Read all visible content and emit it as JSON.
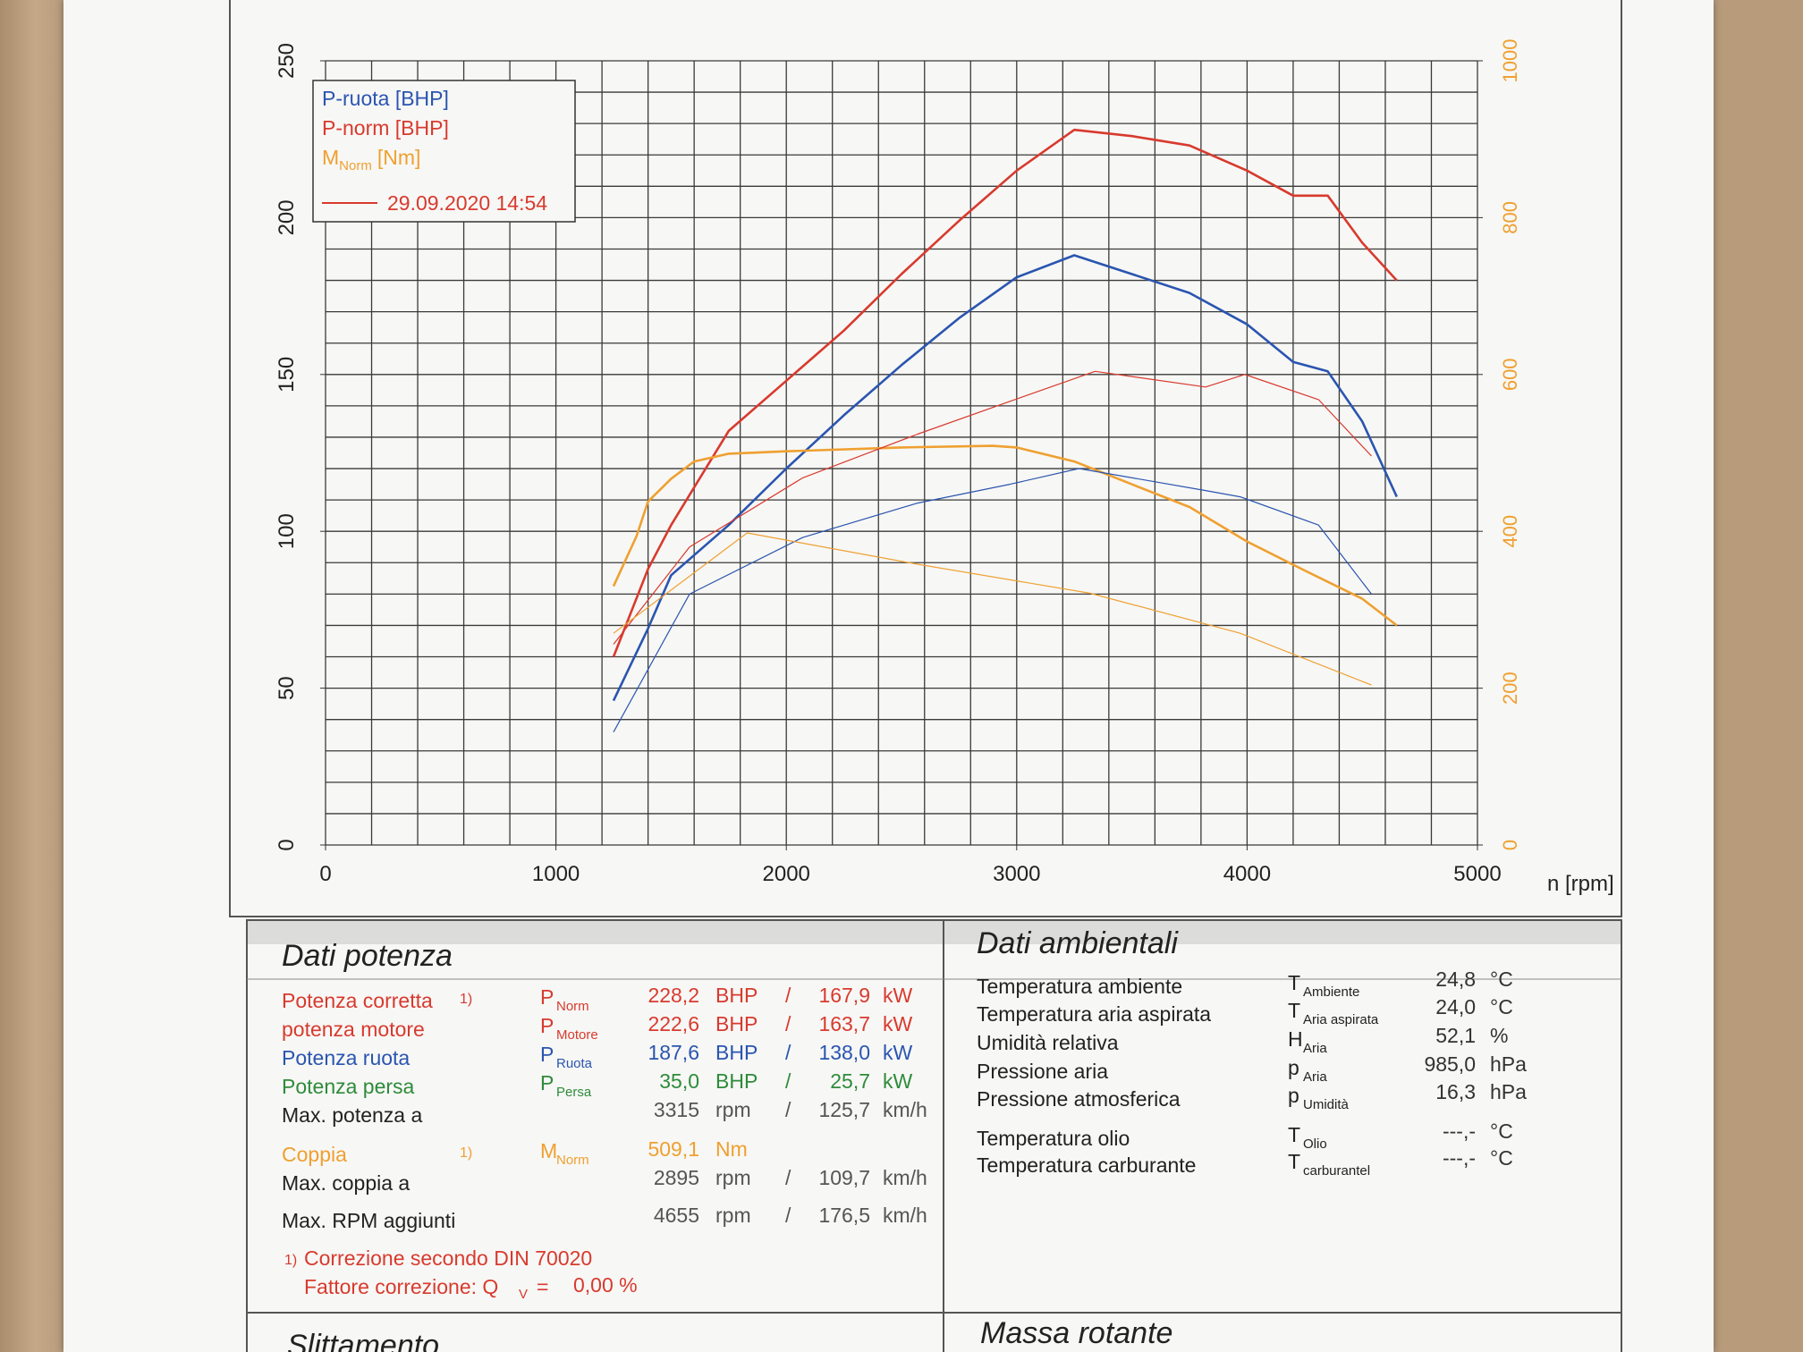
{
  "chart_data": {
    "type": "line",
    "xlabel": "n [rpm]",
    "xlim": [
      0,
      5000
    ],
    "xticks": [
      0,
      1000,
      2000,
      3000,
      4000,
      5000
    ],
    "ylim": [
      0,
      250
    ],
    "yticks": [
      0,
      50,
      100,
      150,
      200,
      250
    ],
    "y2lim": [
      0,
      1000
    ],
    "y2ticks": [
      0,
      200,
      400,
      600,
      800,
      1000
    ],
    "y2color": "#efa030",
    "grid": true,
    "xminor": [
      0,
      200,
      400,
      600,
      800,
      1000,
      1200,
      1400,
      1600,
      1800,
      2000,
      2200,
      2400,
      2600,
      2800,
      3000,
      3200,
      3400,
      3600,
      3800,
      4000,
      4200,
      4400,
      4600,
      4800,
      5000
    ],
    "yminor": [
      0,
      10,
      20,
      30,
      40,
      50,
      60,
      70,
      80,
      90,
      100,
      110,
      120,
      130,
      140,
      150,
      160,
      170,
      180,
      190,
      200,
      210,
      220,
      230,
      240,
      250
    ],
    "legend": "upper left",
    "legend_date": "29.09.2020 14:54",
    "series": [
      {
        "name": "P-ruota [BHP]",
        "color": "#2a55b0",
        "line_width": 2.6,
        "x": [
          1250,
          1400,
          1500,
          1750,
          2000,
          2250,
          2500,
          2750,
          3000,
          3250,
          3500,
          3750,
          4000,
          4200,
          4350,
          4500,
          4650
        ],
        "values": [
          46,
          69,
          86,
          102,
          120,
          137,
          153,
          168,
          181,
          188,
          182,
          176,
          166,
          154,
          151,
          135,
          111
        ]
      },
      {
        "name": "P-norm [BHP]",
        "color": "#d83a2e",
        "line_width": 2.6,
        "x": [
          1250,
          1400,
          1500,
          1750,
          2000,
          2250,
          2500,
          2750,
          3000,
          3250,
          3500,
          3750,
          4000,
          4200,
          4350,
          4500,
          4650
        ],
        "values": [
          60,
          88,
          102,
          132,
          148,
          164,
          182,
          199,
          215,
          228,
          226,
          223,
          215,
          207,
          207,
          192,
          180
        ]
      },
      {
        "name": "M",
        "name_sub": "Norm",
        "name_suffix": "[Nm]",
        "color": "#efa030",
        "line_width": 2.6,
        "axis": "y2",
        "x": [
          1250,
          1350,
          1400,
          1500,
          1600,
          1750,
          2000,
          2500,
          2895,
          3000,
          3250,
          3500,
          3750,
          4000,
          4250,
          4500,
          4650
        ],
        "values": [
          330,
          394,
          438,
          467,
          489,
          499,
          502,
          507,
          509,
          507,
          489,
          460,
          431,
          387,
          350,
          314,
          280
        ]
      },
      {
        "color": "#2a55b0",
        "line_width": 1.2,
        "x": [
          1250,
          1580,
          2070,
          2570,
          2970,
          3270,
          3820,
          3970,
          4310,
          4540
        ],
        "values": [
          36,
          80,
          98,
          109,
          115,
          120,
          113,
          111,
          102,
          80
        ]
      },
      {
        "color": "#d83a2e",
        "line_width": 1.2,
        "x": [
          1250,
          1580,
          2070,
          2570,
          3070,
          3340,
          3820,
          3990,
          4310,
          4540
        ],
        "values": [
          64,
          95,
          117,
          131,
          144,
          151,
          146,
          150,
          142,
          124
        ]
      },
      {
        "color": "#efa030",
        "line_width": 1.2,
        "axis": "y2",
        "x": [
          1250,
          1830,
          2570,
          3320,
          3970,
          4540
        ],
        "values": [
          270,
          398,
          358,
          321,
          270,
          204
        ]
      }
    ]
  },
  "power": {
    "title": "Dati potenza",
    "rows": [
      {
        "label": "Potenza corretta",
        "note": "1)",
        "sym": "P",
        "sub": "Norm",
        "value": "228,2",
        "unit": "BHP",
        "sep": "/",
        "value2": "167,9",
        "unit2": "kW",
        "color": "#d83a2e"
      },
      {
        "label": "potenza motore",
        "sym": "P",
        "sub": "Motore",
        "value": "222,6",
        "unit": "BHP",
        "sep": "/",
        "value2": "163,7",
        "unit2": "kW",
        "color": "#d83a2e"
      },
      {
        "label": "Potenza ruota",
        "sym": "P",
        "sub": "Ruota",
        "value": "187,6",
        "unit": "BHP",
        "sep": "/",
        "value2": "138,0",
        "unit2": "kW",
        "color": "#2a55b0"
      },
      {
        "label": "Potenza persa",
        "sym": "P",
        "sub": "Persa",
        "value": "35,0",
        "unit": "BHP",
        "sep": "/",
        "value2": "25,7",
        "unit2": "kW",
        "color": "#2e8b3a"
      },
      {
        "label": "Max. potenza a",
        "value": "3315",
        "unit": "rpm",
        "sep": "/",
        "value2": "125,7",
        "unit2": "km/h",
        "color": "#333333"
      },
      {
        "label": "Coppia",
        "note": "1)",
        "sym": "M",
        "sub": "Norm",
        "value": "509,1",
        "unit": "Nm",
        "color": "#efa030"
      },
      {
        "label": "Max. coppia a",
        "value": "2895",
        "unit": "rpm",
        "sep": "/",
        "value2": "109,7",
        "unit2": "km/h",
        "color": "#333333"
      },
      {
        "label": "Max. RPM aggiunti",
        "value": "4655",
        "unit": "rpm",
        "sep": "/",
        "value2": "176,5",
        "unit2": "km/h",
        "color": "#333333"
      }
    ],
    "footnote": {
      "note": "1)",
      "line1": "Correzione secondo DIN 70020",
      "line2": "Fattore correzione: Q",
      "line2_sub": "V",
      "line2_eq": "=",
      "line2_value": "0,00 %",
      "color": "#d83a2e"
    }
  },
  "ambient": {
    "title": "Dati ambientali",
    "rows": [
      {
        "label": "Temperatura ambiente",
        "sym": "T",
        "sub": "Ambiente",
        "value": "24,8",
        "unit": "°C"
      },
      {
        "label": "Temperatura aria aspirata",
        "sym": "T",
        "sub": "Aria aspirata",
        "value": "24,0",
        "unit": "°C"
      },
      {
        "label": "Umidità relativa",
        "sym": "H",
        "sub": "Aria",
        "value": "52,1",
        "unit": "%"
      },
      {
        "label": "Pressione aria",
        "sym": "p",
        "sub": "Aria",
        "value": "985,0",
        "unit": "hPa"
      },
      {
        "label": "Pressione atmosferica",
        "sym": "p",
        "sub": "Umidità",
        "value": "16,3",
        "unit": "hPa"
      },
      {
        "label": "Temperatura olio",
        "sym": "T",
        "sub": "Olio",
        "value": "---,-",
        "unit": "°C"
      },
      {
        "label": "Temperatura carburante",
        "sym": "T",
        "sub": "carburantel",
        "value": "---,-",
        "unit": "°C"
      }
    ]
  },
  "slip": {
    "title": "Slittamento"
  },
  "mass": {
    "title": "Massa rotante"
  }
}
